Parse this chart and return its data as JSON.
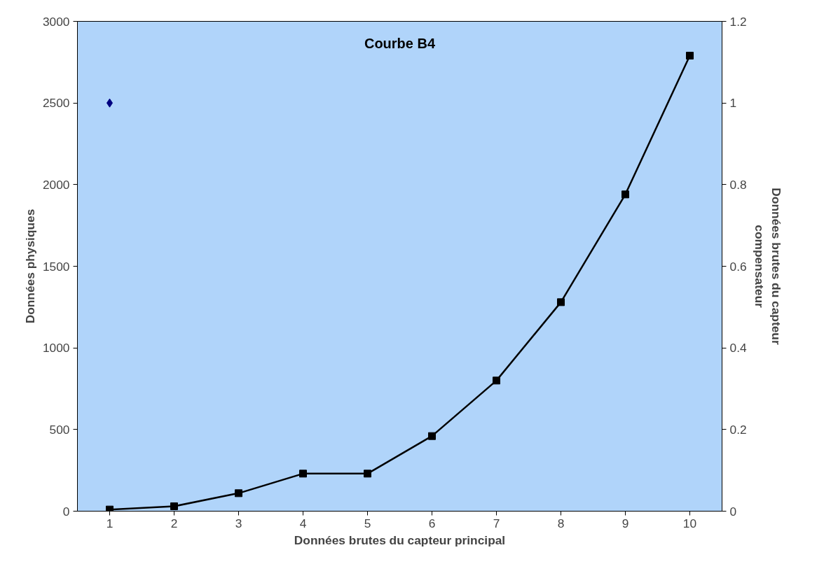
{
  "chart_data": {
    "type": "line",
    "title": "Courbe B4",
    "xlabel": "Données brutes du capteur principal",
    "ylabel": "Données physiques",
    "y2label": "Données brutes du capteur compensateur",
    "categories": [
      "1",
      "2",
      "3",
      "4",
      "5",
      "6",
      "7",
      "8",
      "9",
      "10"
    ],
    "series": [
      {
        "color": "#000000",
        "marker": "square",
        "values": [
          10,
          30,
          110,
          230,
          230,
          460,
          800,
          1280,
          1940,
          2790
        ]
      },
      {
        "type": "scatter",
        "axis": "y2",
        "color": "#000080",
        "marker": "diamond",
        "values": [
          1,
          null,
          null,
          null,
          null,
          null,
          null,
          null,
          null,
          null
        ]
      }
    ],
    "ylim": [
      0,
      3000
    ],
    "yticks": [
      0,
      500,
      1000,
      1500,
      2000,
      2500,
      3000
    ],
    "y2lim": [
      0,
      1.2
    ],
    "y2ticks": [
      0,
      0.2,
      0.4,
      0.6,
      0.8,
      1,
      1.2
    ],
    "grid": false
  }
}
